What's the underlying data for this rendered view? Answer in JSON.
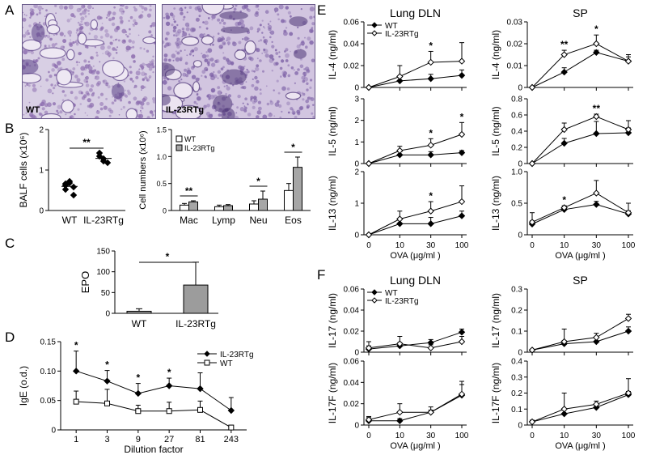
{
  "panel_labels": [
    "A",
    "B",
    "C",
    "D",
    "E",
    "F"
  ],
  "panelA": {
    "images": [
      {
        "caption": "WT",
        "palette": {
          "bg": "#d8cfe4",
          "tissue": "#8e6fb0",
          "dark": "#5a3f86",
          "space": "#eee8f3"
        }
      },
      {
        "caption": "IL-23RTg",
        "palette": {
          "bg": "#d2c5e0",
          "tissue": "#8064a8",
          "dark": "#4d3577",
          "space": "#ece4f1"
        }
      }
    ]
  },
  "chart_data": [
    {
      "id": "B-left",
      "type": "scatter",
      "ylabel": "BALF cells (x10⁶)",
      "ylim": [
        0,
        2
      ],
      "yticks": [
        "0",
        "1",
        "2"
      ],
      "categories": [
        "WT",
        "IL-23RTg"
      ],
      "points": [
        [
          0.62,
          0.68,
          0.58,
          0.52,
          0.72,
          0.38,
          0.66
        ],
        [
          1.42,
          1.28,
          1.18,
          1.34,
          1.22
        ]
      ],
      "significance": "**"
    },
    {
      "id": "B-right",
      "type": "bar",
      "ylabel": "Cell numbers (x10⁶)",
      "ylim": [
        0,
        1.5
      ],
      "yticks": [
        "0",
        "0.5",
        "1.0",
        "1.5"
      ],
      "categories": [
        "Mac",
        "Lymp",
        "Neu",
        "Eos"
      ],
      "legend": [
        "WT",
        "IL-23RTg"
      ],
      "series": [
        {
          "name": "WT",
          "color": "#ffffff",
          "values": [
            0.1,
            0.07,
            0.12,
            0.37
          ],
          "errors": [
            0.03,
            0.03,
            0.06,
            0.13
          ]
        },
        {
          "name": "IL-23RTg",
          "color": "#a6a6a6",
          "values": [
            0.16,
            0.09,
            0.21,
            0.8
          ],
          "errors": [
            0.02,
            0.02,
            0.15,
            0.19
          ]
        }
      ],
      "significance": [
        {
          "index": 0,
          "mark": "**"
        },
        {
          "index": 2,
          "mark": "*"
        },
        {
          "index": 3,
          "mark": "*"
        }
      ]
    },
    {
      "id": "C",
      "type": "bar",
      "ylabel": "EPO",
      "ylim": [
        0,
        150
      ],
      "yticks": [
        "0",
        "50",
        "100",
        "150"
      ],
      "categories": [
        "WT",
        "IL-23RTg"
      ],
      "values": [
        5,
        68
      ],
      "errors": [
        6,
        55
      ],
      "colors": [
        "#9c9c9c",
        "#9c9c9c"
      ],
      "significance": "*"
    },
    {
      "id": "D",
      "type": "line",
      "ylabel": "IgE (o.d.)",
      "xlabel": "Dilution factor",
      "ylim": [
        0,
        0.15
      ],
      "yticks": [
        "0",
        "0.05",
        "0.10",
        "0.15"
      ],
      "categories": [
        "1",
        "3",
        "9",
        "27",
        "81",
        "243"
      ],
      "series": [
        {
          "name": "IL-23RTg",
          "marker": "diamond",
          "values": [
            0.1,
            0.083,
            0.062,
            0.075,
            0.07,
            0.033
          ],
          "errors": [
            0.034,
            0.018,
            0.017,
            0.013,
            0.027,
            0.022
          ]
        },
        {
          "name": "WT",
          "marker": "square",
          "values": [
            0.048,
            0.045,
            0.032,
            0.032,
            0.034,
            0.004
          ],
          "errors": [
            0.018,
            0.024,
            0.01,
            0.015,
            0.015,
            0.004
          ]
        }
      ],
      "significance_indices": [
        0,
        1,
        2,
        3
      ]
    },
    {
      "id": "E-lung-IL4",
      "type": "line",
      "title": "Lung DLN",
      "ylabel": "IL-4 (ng/ml)",
      "ylim": [
        0,
        0.06
      ],
      "yticks": [
        "0",
        "0.02",
        "0.04",
        "0.06"
      ],
      "categories": [
        "0",
        "10",
        "30",
        "100"
      ],
      "legend": [
        "WT",
        "IL-23RTg"
      ],
      "series": [
        {
          "name": "WT",
          "marker": "filled",
          "values": [
            0,
            0.006,
            0.008,
            0.011
          ],
          "errors": [
            0,
            0.004,
            0.004,
            0.005
          ]
        },
        {
          "name": "IL-23RTg",
          "marker": "open",
          "values": [
            0,
            0.01,
            0.023,
            0.024
          ],
          "errors": [
            0,
            0.01,
            0.01,
            0.017
          ]
        }
      ],
      "significance_indices": [
        2
      ]
    },
    {
      "id": "E-sp-IL4",
      "type": "line",
      "title": "SP",
      "ylabel": "IL-4 (ng/ml)",
      "ylim": [
        0,
        0.03
      ],
      "yticks": [
        "0",
        "0.01",
        "0.02",
        "0.03"
      ],
      "categories": [
        "0",
        "10",
        "30",
        "100"
      ],
      "series": [
        {
          "name": "WT",
          "marker": "filled",
          "values": [
            0,
            0.007,
            0.016,
            0.012
          ],
          "errors": [
            0,
            0.002,
            0.001,
            0.003
          ]
        },
        {
          "name": "IL-23RTg",
          "marker": "open",
          "values": [
            0,
            0.015,
            0.02,
            0.012
          ],
          "errors": [
            0,
            0.002,
            0.004,
            0.002
          ]
        }
      ],
      "significance": [
        {
          "index": 1,
          "mark": "**"
        },
        {
          "index": 2,
          "mark": "*"
        }
      ]
    },
    {
      "id": "E-lung-IL5",
      "type": "line",
      "ylabel": "IL-5 (ng/ml)",
      "ylim": [
        0,
        3
      ],
      "yticks": [
        "0",
        "1",
        "2",
        "3"
      ],
      "categories": [
        "0",
        "10",
        "30",
        "100"
      ],
      "series": [
        {
          "name": "WT",
          "marker": "filled",
          "values": [
            0,
            0.4,
            0.4,
            0.5
          ],
          "errors": [
            0,
            0.15,
            0.15,
            0.1
          ]
        },
        {
          "name": "IL-23RTg",
          "marker": "open",
          "values": [
            0,
            0.6,
            0.85,
            1.35
          ],
          "errors": [
            0,
            0.2,
            0.3,
            0.55
          ]
        }
      ],
      "significance_indices": [
        2,
        3
      ]
    },
    {
      "id": "E-sp-IL5",
      "type": "line",
      "ylabel": "IL-5 (ng/ml)",
      "ylim": [
        0,
        0.8
      ],
      "yticks": [
        "0",
        "0.2",
        "0.4",
        "0.6",
        "0.8"
      ],
      "categories": [
        "0",
        "10",
        "30",
        "100"
      ],
      "series": [
        {
          "name": "WT",
          "marker": "filled",
          "values": [
            0,
            0.25,
            0.37,
            0.38
          ],
          "errors": [
            0,
            0.06,
            0.15,
            0.06
          ]
        },
        {
          "name": "IL-23RTg",
          "marker": "open",
          "values": [
            0,
            0.42,
            0.58,
            0.42
          ],
          "errors": [
            0,
            0.08,
            0.03,
            0.11
          ]
        }
      ],
      "significance": [
        {
          "index": 2,
          "mark": "**"
        }
      ]
    },
    {
      "id": "E-lung-IL13",
      "type": "line",
      "ylabel": "IL-13 (ng/ml)",
      "xlabel": "OVA (μg/ml )",
      "ylim": [
        0,
        2
      ],
      "yticks": [
        "0",
        "1",
        "2"
      ],
      "categories": [
        "0",
        "10",
        "30",
        "100"
      ],
      "series": [
        {
          "name": "WT",
          "marker": "filled",
          "values": [
            0,
            0.35,
            0.35,
            0.6
          ],
          "errors": [
            0,
            0.15,
            0.2,
            0.15
          ]
        },
        {
          "name": "IL-23RTg",
          "marker": "open",
          "values": [
            0,
            0.5,
            0.75,
            1.05
          ],
          "errors": [
            0,
            0.25,
            0.3,
            0.5
          ]
        }
      ],
      "significance_indices": [
        2
      ]
    },
    {
      "id": "E-sp-IL13",
      "type": "line",
      "ylabel": "IL-13 (ng/ml)",
      "xlabel": "OVA (μg/ml )",
      "ylim": [
        0,
        1.0
      ],
      "yticks": [
        "0",
        "0.5",
        "1.0"
      ],
      "categories": [
        "0",
        "10",
        "30",
        "100"
      ],
      "series": [
        {
          "name": "WT",
          "marker": "filled",
          "values": [
            0.17,
            0.4,
            0.48,
            0.33
          ],
          "errors": [
            0.05,
            0.03,
            0.05,
            0.05
          ]
        },
        {
          "name": "IL-23RTg",
          "marker": "open",
          "values": [
            0.2,
            0.43,
            0.66,
            0.35
          ],
          "errors": [
            0.15,
            0.03,
            0.2,
            0.15
          ]
        }
      ],
      "significance_indices": [
        1
      ]
    },
    {
      "id": "F-lung-IL17",
      "type": "line",
      "title": "Lung DLN",
      "ylabel": "IL-17 (ng/ml)",
      "ylim": [
        0,
        0.06
      ],
      "yticks": [
        "0",
        "0.02",
        "0.04",
        "0.06"
      ],
      "categories": [
        "0",
        "10",
        "30",
        "100"
      ],
      "legend": [
        "WT",
        "IL-23RTg"
      ],
      "series": [
        {
          "name": "WT",
          "marker": "filled",
          "values": [
            0.003,
            0.006,
            0.009,
            0.019
          ],
          "errors": [
            0.003,
            0.003,
            0.003,
            0.003
          ]
        },
        {
          "name": "IL-23RTg",
          "marker": "open",
          "values": [
            0.004,
            0.008,
            0.004,
            0.01
          ],
          "errors": [
            0.006,
            0.007,
            0.003,
            0.005
          ]
        }
      ]
    },
    {
      "id": "F-sp-IL17",
      "type": "line",
      "title": "SP",
      "ylabel": "IL-17 (ng/ml)",
      "ylim": [
        0,
        0.3
      ],
      "yticks": [
        "0",
        "0.1",
        "0.2",
        "0.3"
      ],
      "categories": [
        "0",
        "10",
        "30",
        "100"
      ],
      "series": [
        {
          "name": "WT",
          "marker": "filled",
          "values": [
            0.01,
            0.04,
            0.05,
            0.1
          ],
          "errors": [
            0.003,
            0.015,
            0.02,
            0.02
          ]
        },
        {
          "name": "IL-23RTg",
          "marker": "open",
          "values": [
            0.01,
            0.05,
            0.07,
            0.16
          ],
          "errors": [
            0.003,
            0.06,
            0.02,
            0.02
          ]
        }
      ]
    },
    {
      "id": "F-lung-IL17F",
      "type": "line",
      "ylabel": "IL-17F (ng/ml)",
      "xlabel": "OVA (μg/ml )",
      "ylim": [
        0,
        0.06
      ],
      "yticks": [
        "0",
        "0.02",
        "0.04",
        "0.06"
      ],
      "categories": [
        "0",
        "10",
        "30",
        "100"
      ],
      "series": [
        {
          "name": "WT",
          "marker": "filled",
          "values": [
            0.004,
            0.004,
            0.012,
            0.028
          ],
          "errors": [
            0.003,
            0.002,
            0.002,
            0.01
          ]
        },
        {
          "name": "IL-23RTg",
          "marker": "open",
          "values": [
            0.005,
            0.012,
            0.012,
            0.029
          ],
          "errors": [
            0.003,
            0.008,
            0.005,
            0.012
          ]
        }
      ]
    },
    {
      "id": "F-sp-IL17F",
      "type": "line",
      "ylabel": "IL-17F (ng/ml)",
      "xlabel": "OVA (μg/ml )",
      "ylim": [
        0,
        0.4
      ],
      "yticks": [
        "0",
        "0.1",
        "0.2",
        "0.3",
        "0.4"
      ],
      "categories": [
        "0",
        "10",
        "30",
        "100"
      ],
      "series": [
        {
          "name": "WT",
          "marker": "filled",
          "values": [
            0.02,
            0.07,
            0.11,
            0.19
          ],
          "errors": [
            0.01,
            0.03,
            0.02,
            0.02
          ]
        },
        {
          "name": "IL-23RTg",
          "marker": "open",
          "values": [
            0.02,
            0.1,
            0.13,
            0.2
          ],
          "errors": [
            0.01,
            0.1,
            0.02,
            0.09
          ]
        }
      ]
    }
  ]
}
